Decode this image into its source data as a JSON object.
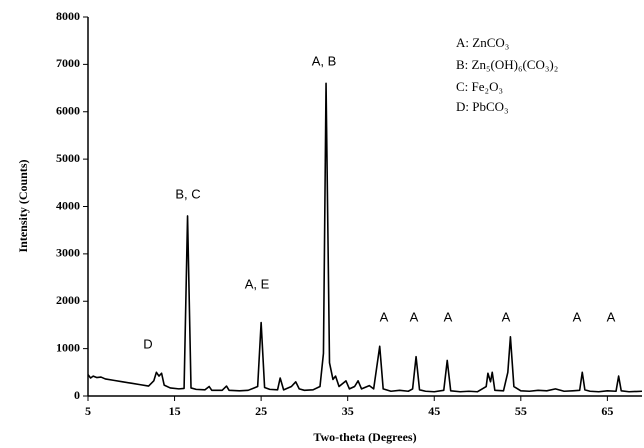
{
  "chart_data": {
    "type": "line",
    "x_label": "Two-theta (Degrees)",
    "y_label": "Intensity (Counts)",
    "xlim": [
      5,
      69
    ],
    "xticks": [
      5,
      15,
      25,
      35,
      45,
      55,
      65
    ],
    "ylim": [
      0,
      8000
    ],
    "yticks": [
      0,
      1000,
      2000,
      3000,
      4000,
      5000,
      6000,
      7000,
      8000
    ],
    "peak_labels": [
      "D",
      "B, C",
      "A, E",
      "A, B",
      "A",
      "A",
      "A",
      "A",
      "A",
      "A"
    ],
    "legend_entries": [
      "A: ZnCO₃",
      "B: Zn₅(OH)₆(CO₃)₂",
      "C: Fe₂O₃",
      "D: PbCO₃"
    ],
    "series": [
      {
        "color": "#000000",
        "x": [
          5,
          5.3,
          5.6,
          6,
          6.5,
          7,
          8,
          9,
          10,
          11,
          12,
          12.6,
          12.9,
          13.2,
          13.5,
          13.8,
          14.5,
          15.5,
          16.1,
          16.5,
          16.9,
          17.5,
          18.5,
          19,
          19.3,
          20.5,
          21,
          21.3,
          22.5,
          23.5,
          24.6,
          25,
          25.4,
          26,
          26.9,
          27.2,
          27.6,
          28.5,
          29,
          29.4,
          30,
          31,
          31.8,
          32.2,
          32.5,
          32.9,
          33.3,
          33.6,
          34,
          34.8,
          35.2,
          35.8,
          36.2,
          36.6,
          37.5,
          38,
          38.7,
          39.1,
          40,
          41,
          42,
          42.5,
          42.9,
          43.3,
          44,
          45,
          46.1,
          46.5,
          46.9,
          48,
          49,
          50,
          51,
          51.2,
          51.5,
          51.7,
          52,
          53,
          53.5,
          53.8,
          54.2,
          55,
          56,
          57,
          58,
          59,
          60,
          61,
          61.8,
          62.1,
          62.4,
          63,
          64,
          65,
          66,
          66.3,
          66.6,
          67.5,
          69
        ],
        "values": [
          450,
          380,
          420,
          390,
          400,
          360,
          330,
          300,
          270,
          240,
          210,
          320,
          500,
          420,
          480,
          230,
          170,
          150,
          160,
          3800,
          170,
          140,
          130,
          200,
          120,
          120,
          210,
          120,
          110,
          120,
          200,
          1550,
          180,
          140,
          130,
          380,
          130,
          200,
          300,
          150,
          120,
          130,
          200,
          900,
          6600,
          700,
          350,
          420,
          200,
          320,
          150,
          200,
          320,
          150,
          220,
          150,
          1050,
          150,
          100,
          120,
          100,
          150,
          830,
          130,
          100,
          90,
          120,
          750,
          110,
          90,
          100,
          90,
          200,
          480,
          300,
          500,
          120,
          110,
          500,
          1250,
          200,
          110,
          100,
          120,
          110,
          150,
          100,
          110,
          120,
          500,
          130,
          100,
          90,
          110,
          100,
          420,
          110,
          90,
          100
        ]
      }
    ]
  }
}
